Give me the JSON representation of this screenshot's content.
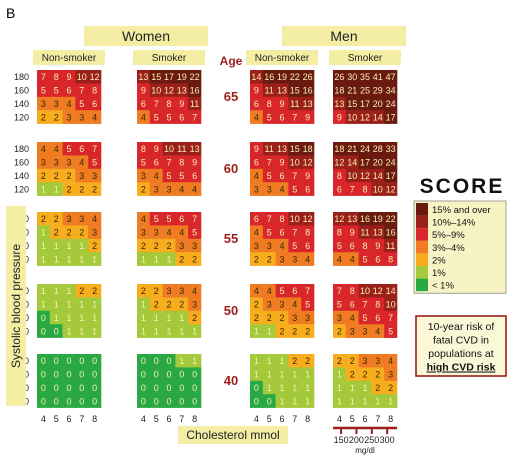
{
  "panel_letter": "B",
  "headers": {
    "women": "Women",
    "men": "Men",
    "non_smoker": "Non-smoker",
    "smoker": "Smoker",
    "age": "Age"
  },
  "y_axis_label": "Systolic blood pressure",
  "x_axis_label": "Cholesterol mmol",
  "mgdl_label": "mg/dl",
  "mgdl_ticks": [
    "150",
    "200",
    "250",
    "300"
  ],
  "score_logo": "SCORE",
  "legend": [
    {
      "label": "15% and over",
      "color": "#6b1a10"
    },
    {
      "label": "10%–14%",
      "color": "#9b1f1a"
    },
    {
      "label": "5%–9%",
      "color": "#d9262b"
    },
    {
      "label": "3%–4%",
      "color": "#ef7b22"
    },
    {
      "label": "2%",
      "color": "#f7ad1d"
    },
    {
      "label": "1%",
      "color": "#a4c93a"
    },
    {
      "label": "< 1%",
      "color": "#29a844"
    }
  ],
  "risk_note": {
    "line1": "10-year risk of",
    "line2": "fatal CVD in",
    "line3": "populations at",
    "line4": "high CVD risk"
  },
  "chart_data": {
    "type": "heatmap",
    "title": "",
    "xlabel": "Cholesterol mmol",
    "ylabel": "Systolic blood pressure",
    "cholesterol_mmol": [
      4,
      5,
      6,
      7,
      8
    ],
    "systolic_bp": [
      180,
      160,
      140,
      120
    ],
    "ages": [
      65,
      60,
      55,
      50,
      40
    ],
    "groups": [
      {
        "sex": "Women",
        "smoking": "Non-smoker",
        "grids": [
          [
            [
              7,
              8,
              9,
              10,
              12
            ],
            [
              5,
              5,
              6,
              7,
              8
            ],
            [
              3,
              3,
              4,
              5,
              6
            ],
            [
              2,
              2,
              3,
              3,
              4
            ]
          ],
          [
            [
              4,
              4,
              5,
              6,
              7
            ],
            [
              3,
              3,
              3,
              4,
              5
            ],
            [
              2,
              2,
              2,
              3,
              3
            ],
            [
              1,
              1,
              2,
              2,
              2
            ]
          ],
          [
            [
              2,
              2,
              3,
              3,
              4
            ],
            [
              1,
              2,
              2,
              2,
              3
            ],
            [
              1,
              1,
              1,
              1,
              2
            ],
            [
              1,
              1,
              1,
              1,
              1
            ]
          ],
          [
            [
              1,
              1,
              1,
              2,
              2
            ],
            [
              1,
              1,
              1,
              1,
              1
            ],
            [
              0,
              1,
              1,
              1,
              1
            ],
            [
              0,
              0,
              1,
              1,
              1
            ]
          ],
          [
            [
              0,
              0,
              0,
              0,
              0
            ],
            [
              0,
              0,
              0,
              0,
              0
            ],
            [
              0,
              0,
              0,
              0,
              0
            ],
            [
              0,
              0,
              0,
              0,
              0
            ]
          ]
        ]
      },
      {
        "sex": "Women",
        "smoking": "Smoker",
        "grids": [
          [
            [
              13,
              15,
              17,
              19,
              22
            ],
            [
              9,
              10,
              12,
              13,
              16
            ],
            [
              6,
              7,
              8,
              9,
              11
            ],
            [
              4,
              5,
              5,
              6,
              7
            ]
          ],
          [
            [
              8,
              9,
              10,
              11,
              13
            ],
            [
              5,
              6,
              7,
              8,
              9
            ],
            [
              3,
              4,
              5,
              5,
              6
            ],
            [
              2,
              3,
              3,
              4,
              4
            ]
          ],
          [
            [
              4,
              5,
              5,
              6,
              7
            ],
            [
              3,
              3,
              4,
              4,
              5
            ],
            [
              2,
              2,
              2,
              3,
              3
            ],
            [
              1,
              1,
              1,
              2,
              2
            ]
          ],
          [
            [
              2,
              2,
              3,
              3,
              4
            ],
            [
              1,
              2,
              2,
              2,
              3
            ],
            [
              1,
              1,
              1,
              1,
              2
            ],
            [
              1,
              1,
              1,
              1,
              1
            ]
          ],
          [
            [
              0,
              0,
              0,
              1,
              1
            ],
            [
              0,
              0,
              0,
              0,
              0
            ],
            [
              0,
              0,
              0,
              0,
              0
            ],
            [
              0,
              0,
              0,
              0,
              0
            ]
          ]
        ]
      },
      {
        "sex": "Men",
        "smoking": "Non-smoker",
        "grids": [
          [
            [
              14,
              16,
              19,
              22,
              26
            ],
            [
              9,
              11,
              13,
              15,
              16
            ],
            [
              6,
              8,
              9,
              11,
              13
            ],
            [
              4,
              5,
              6,
              7,
              9
            ]
          ],
          [
            [
              9,
              11,
              13,
              15,
              18
            ],
            [
              6,
              7,
              9,
              10,
              12
            ],
            [
              4,
              5,
              6,
              7,
              9
            ],
            [
              3,
              3,
              4,
              5,
              6
            ]
          ],
          [
            [
              6,
              7,
              8,
              10,
              12
            ],
            [
              4,
              5,
              6,
              7,
              8
            ],
            [
              3,
              3,
              4,
              5,
              6
            ],
            [
              2,
              2,
              3,
              3,
              4
            ]
          ],
          [
            [
              4,
              4,
              5,
              6,
              7
            ],
            [
              2,
              3,
              3,
              4,
              5
            ],
            [
              2,
              2,
              2,
              3,
              3
            ],
            [
              1,
              1,
              2,
              2,
              2
            ]
          ],
          [
            [
              1,
              1,
              1,
              2,
              2
            ],
            [
              1,
              1,
              1,
              1,
              1
            ],
            [
              0,
              1,
              1,
              1,
              1
            ],
            [
              0,
              0,
              1,
              1,
              1
            ]
          ]
        ]
      },
      {
        "sex": "Men",
        "smoking": "Smoker",
        "grids": [
          [
            [
              26,
              30,
              35,
              41,
              47
            ],
            [
              18,
              21,
              25,
              29,
              34
            ],
            [
              13,
              15,
              17,
              20,
              24
            ],
            [
              9,
              10,
              12,
              14,
              17
            ]
          ],
          [
            [
              18,
              21,
              24,
              28,
              33
            ],
            [
              12,
              14,
              17,
              20,
              24
            ],
            [
              8,
              10,
              12,
              14,
              17
            ],
            [
              6,
              7,
              8,
              10,
              12
            ]
          ],
          [
            [
              12,
              13,
              16,
              19,
              22
            ],
            [
              8,
              9,
              11,
              13,
              16
            ],
            [
              5,
              6,
              8,
              9,
              11
            ],
            [
              4,
              4,
              5,
              6,
              8
            ]
          ],
          [
            [
              7,
              8,
              10,
              12,
              14
            ],
            [
              5,
              6,
              7,
              8,
              10
            ],
            [
              3,
              4,
              5,
              6,
              7
            ],
            [
              2,
              3,
              3,
              4,
              5
            ]
          ],
          [
            [
              2,
              2,
              3,
              3,
              4
            ],
            [
              1,
              2,
              2,
              2,
              3
            ],
            [
              1,
              1,
              1,
              2,
              2
            ],
            [
              1,
              1,
              1,
              1,
              1
            ]
          ]
        ]
      }
    ]
  }
}
